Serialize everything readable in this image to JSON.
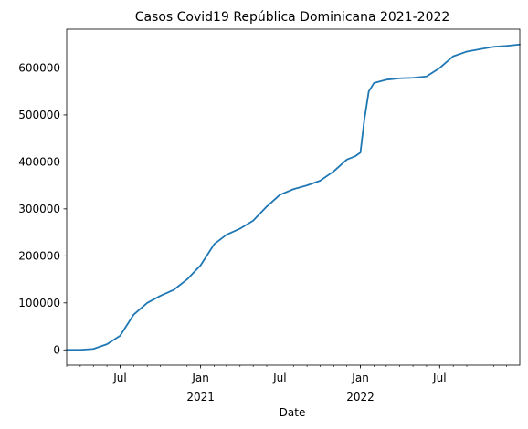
{
  "chart_data": {
    "type": "line",
    "title": "Casos Covid19 República Dominicana 2021-2022",
    "xlabel": "Date",
    "ylabel": "",
    "grid": false,
    "line_color": "#1f77b4",
    "xlim": [
      "2020-03-01",
      "2022-12-31"
    ],
    "ylim": [
      -32500,
      682500
    ],
    "yticks": [
      0,
      100000,
      200000,
      300000,
      400000,
      500000,
      600000
    ],
    "ytick_labels": [
      "0",
      "100000",
      "200000",
      "300000",
      "400000",
      "500000",
      "600000"
    ],
    "xticks_major": [
      {
        "date": "2020-07-01",
        "label": "Jul",
        "sublabel": ""
      },
      {
        "date": "2021-01-01",
        "label": "Jan",
        "sublabel": "2021"
      },
      {
        "date": "2021-07-01",
        "label": "Jul",
        "sublabel": ""
      },
      {
        "date": "2022-01-01",
        "label": "Jan",
        "sublabel": "2022"
      },
      {
        "date": "2022-07-01",
        "label": "Jul",
        "sublabel": ""
      }
    ],
    "series": [
      {
        "x": [
          "2020-03-01",
          "2020-04-01",
          "2020-05-01",
          "2020-06-01",
          "2020-07-01",
          "2020-08-01",
          "2020-09-01",
          "2020-10-01",
          "2020-11-01",
          "2020-12-01",
          "2021-01-01",
          "2021-02-01",
          "2021-03-01",
          "2021-04-01",
          "2021-05-01",
          "2021-06-01",
          "2021-07-01",
          "2021-08-01",
          "2021-09-01",
          "2021-10-01",
          "2021-11-01",
          "2021-12-01",
          "2021-12-20",
          "2022-01-01",
          "2022-01-10",
          "2022-01-20",
          "2022-02-01",
          "2022-03-01",
          "2022-04-01",
          "2022-05-01",
          "2022-06-01",
          "2022-07-01",
          "2022-08-01",
          "2022-09-01",
          "2022-10-01",
          "2022-11-01",
          "2022-12-01",
          "2022-12-31"
        ],
        "y": [
          0,
          0,
          2000,
          12000,
          30000,
          75000,
          100000,
          115000,
          128000,
          150000,
          180000,
          225000,
          245000,
          258000,
          275000,
          305000,
          330000,
          342000,
          350000,
          360000,
          380000,
          405000,
          412000,
          420000,
          490000,
          550000,
          568000,
          575000,
          578000,
          579000,
          582000,
          600000,
          625000,
          635000,
          640000,
          645000,
          647000,
          650000
        ]
      }
    ]
  }
}
